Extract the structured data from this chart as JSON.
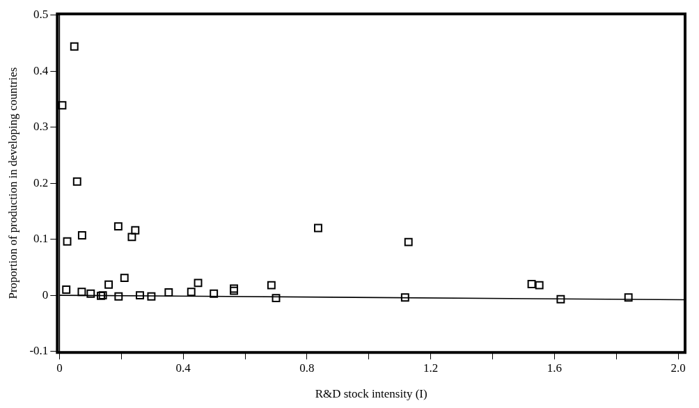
{
  "chart_data": {
    "type": "scatter",
    "xlabel": "R&D stock intensity (I)",
    "ylabel": "Proportion of production in developing countries",
    "xlim": [
      -0.007,
      2.022
    ],
    "xticks": [
      0,
      {
        "value": 0.2,
        "label": null
      },
      0.4,
      {
        "value": 0.6,
        "label": null
      },
      0.8,
      {
        "value": 1.0,
        "label": null
      },
      1.2,
      {
        "value": 1.4,
        "label": null
      },
      1.6,
      {
        "value": 1.8,
        "label": null
      },
      {
        "value": 2,
        "label": "2.0"
      }
    ],
    "ylim": [
      -0.102,
      0.502
    ],
    "yticks": [
      -0.1,
      0,
      0.1,
      0.2,
      0.3,
      0.4,
      0.5
    ],
    "grid": false,
    "legend": false,
    "marker": "square",
    "ref_lines": [
      {
        "axis": "x",
        "value": 0
      }
    ],
    "series": [
      {
        "color": "#000000",
        "x": [
          0.048,
          0.009,
          0.057,
          0.025,
          0.073,
          0.19,
          0.234,
          0.245,
          0.836,
          1.128,
          0.022,
          0.072,
          0.101,
          0.134,
          0.14,
          0.159,
          0.191,
          0.21,
          0.26,
          0.297,
          0.353,
          0.426,
          0.448,
          0.499,
          0.564,
          0.564,
          0.685,
          0.7,
          1.117,
          1.526,
          1.551,
          1.62,
          1.839
        ],
        "values": [
          0.444,
          0.339,
          0.203,
          0.096,
          0.107,
          0.123,
          0.104,
          0.116,
          0.12,
          0.095,
          0.01,
          0.006,
          0.003,
          -0.001,
          0.0,
          0.019,
          -0.002,
          0.031,
          0.0,
          -0.002,
          0.005,
          0.006,
          0.022,
          0.003,
          0.012,
          0.008,
          0.018,
          -0.005,
          -0.004,
          0.02,
          0.018,
          -0.007,
          -0.004
        ]
      },
      {
        "type": "line",
        "color": "#000000",
        "marker": "none",
        "line_style": "solid",
        "x": [
          0,
          2.02
        ],
        "values": [
          0.0,
          -0.008
        ]
      }
    ]
  }
}
